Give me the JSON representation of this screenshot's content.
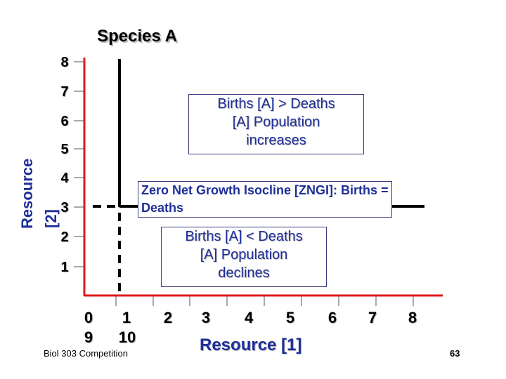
{
  "title": "Species A",
  "y_axis": {
    "label_line1": "Resource",
    "label_line2": "[2]",
    "ticks": [
      "1",
      "2",
      "3",
      "4",
      "5",
      "6",
      "7",
      "8"
    ]
  },
  "x_axis": {
    "label": "Resource [1]",
    "ticks_top": [
      "0",
      "1",
      "2",
      "3",
      "4",
      "5",
      "6",
      "7",
      "8"
    ],
    "ticks_bottom": [
      "9",
      "10"
    ]
  },
  "annotations": {
    "above": [
      "Births [A] > Deaths",
      "[A] Population",
      "increases"
    ],
    "zngi": [
      "Zero Net Growth Isocline [ZNGI]:  Births =",
      "Deaths"
    ],
    "below": [
      "Births [A] < Deaths",
      "[A] Population",
      "declines"
    ]
  },
  "footer": "Biol 303 Competition",
  "slide_number": "63",
  "colors": {
    "axis": "#e0181c",
    "label_blue": "#1e2f99",
    "isocline": "#000000"
  }
}
